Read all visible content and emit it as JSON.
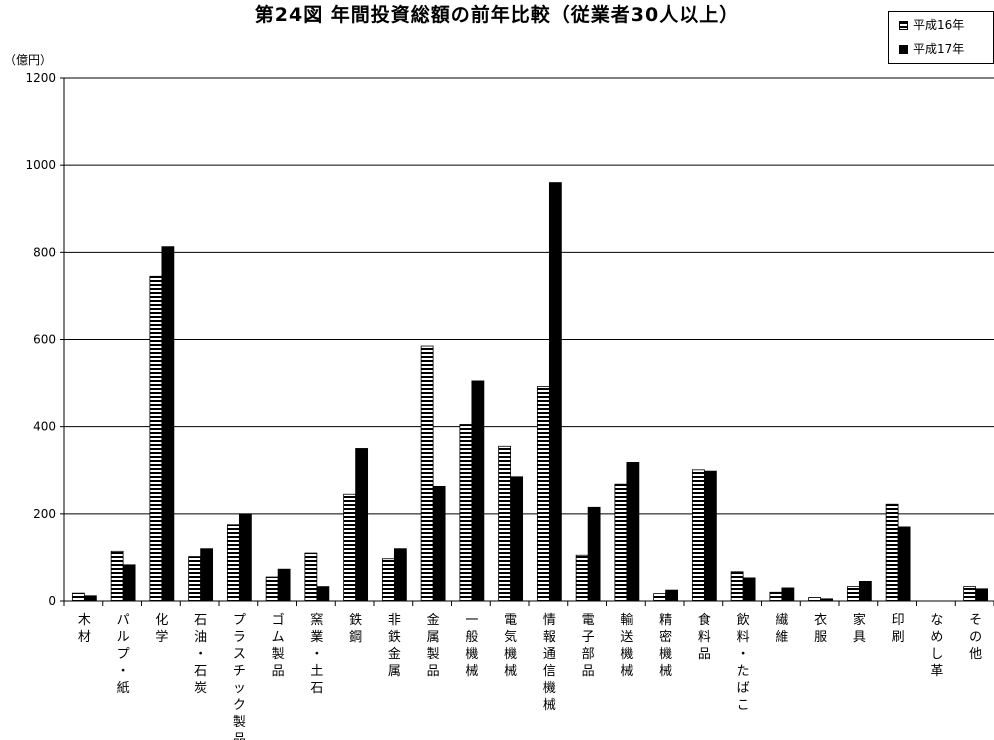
{
  "chart_data": {
    "type": "bar",
    "title": "第24図 年間投資総額の前年比較（従業者30人以上）",
    "ylabel": "（億円）",
    "ylim": [
      0,
      1200
    ],
    "yticks": [
      "0",
      "200",
      "400",
      "600",
      "800",
      "1000",
      "1200"
    ],
    "grid": true,
    "legend_position": "top-right",
    "categories": [
      "木材",
      "パルプ・紙",
      "化学",
      "石油・石炭",
      "プラスチック製品",
      "ゴム製品",
      "窯業・土石",
      "鉄鋼",
      "非鉄金属",
      "金属製品",
      "一般機械",
      "電気機械",
      "情報通信機械",
      "電子部品",
      "輸送機械",
      "精密機械",
      "食料品",
      "飲料・たばこ",
      "繊維",
      "衣服",
      "家具",
      "印刷",
      "なめし革",
      "その他"
    ],
    "series": [
      {
        "name": "平成16年",
        "pattern": "horizontal-stripes",
        "values": [
          18,
          114,
          745,
          102,
          175,
          55,
          110,
          245,
          97,
          585,
          405,
          355,
          492,
          105,
          268,
          17,
          301,
          67,
          20,
          8,
          33,
          222,
          0,
          33
        ]
      },
      {
        "name": "平成17年",
        "pattern": "solid",
        "color": "#000000",
        "values": [
          12,
          83,
          813,
          120,
          200,
          73,
          33,
          350,
          120,
          263,
          505,
          285,
          960,
          215,
          318,
          25,
          298,
          53,
          30,
          5,
          45,
          170,
          0,
          28
        ]
      }
    ]
  }
}
